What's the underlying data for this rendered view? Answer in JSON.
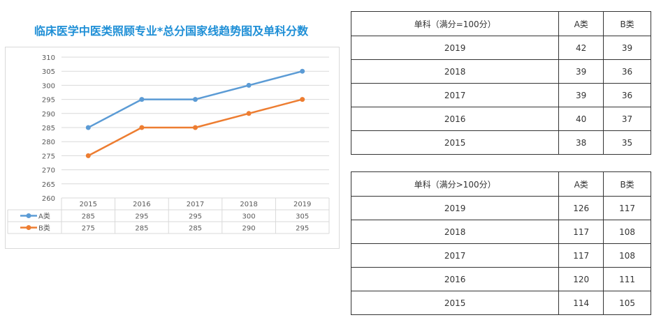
{
  "chart_data": {
    "type": "line",
    "title": "临床医学中医类照顾专业*总分国家线趋势图及单科分数",
    "categories": [
      "2015",
      "2016",
      "2017",
      "2018",
      "2019"
    ],
    "ylim": [
      260,
      310
    ],
    "yticks": [
      "260",
      "265",
      "270",
      "275",
      "280",
      "285",
      "290",
      "295",
      "300",
      "305",
      "310"
    ],
    "grid": true,
    "legend": "data-table-left",
    "series": [
      {
        "name": "A类",
        "values": [
          285,
          295,
          295,
          300,
          305
        ],
        "color": "#5b9bd5"
      },
      {
        "name": "B类",
        "values": [
          275,
          285,
          285,
          290,
          295
        ],
        "color": "#ed7d31"
      }
    ]
  },
  "table1": {
    "headers": [
      "单科（满分=100分）",
      "A类",
      "B类"
    ],
    "rows": [
      [
        "2019",
        "42",
        "39"
      ],
      [
        "2018",
        "39",
        "36"
      ],
      [
        "2017",
        "39",
        "36"
      ],
      [
        "2016",
        "40",
        "37"
      ],
      [
        "2015",
        "38",
        "35"
      ]
    ]
  },
  "table2": {
    "headers": [
      "单科（满分>100分）",
      "A类",
      "B类"
    ],
    "rows": [
      [
        "2019",
        "126",
        "117"
      ],
      [
        "2018",
        "117",
        "108"
      ],
      [
        "2017",
        "117",
        "108"
      ],
      [
        "2016",
        "120",
        "111"
      ],
      [
        "2015",
        "114",
        "105"
      ]
    ]
  }
}
